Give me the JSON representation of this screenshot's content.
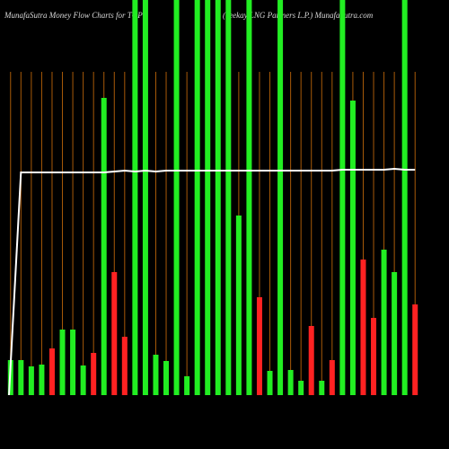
{
  "chart_data": {
    "type": "bar",
    "title": "MunafaSutra  Money Flow  Charts for TGP",
    "subtitle": "(Teekay LNG Partners L.P.) MunafaSutra.com",
    "categories": [
      null,
      null,
      null,
      null,
      null,
      null,
      null,
      null,
      null,
      null,
      null,
      null,
      null,
      null,
      null,
      null,
      null,
      null,
      null,
      null,
      null,
      null,
      null,
      null,
      null,
      null,
      null,
      null,
      null,
      null,
      null,
      null,
      null,
      null,
      null,
      null,
      null,
      null,
      null,
      null
    ],
    "values": [
      39,
      39,
      32,
      34,
      52,
      73,
      73,
      33,
      47,
      331,
      137,
      65,
      440,
      440,
      45,
      38,
      440,
      21,
      440,
      440,
      440,
      440,
      200,
      440,
      109,
      27,
      440,
      28,
      16,
      77,
      16,
      39,
      440,
      328,
      151,
      86,
      162,
      137,
      440,
      101
    ],
    "colors": [
      "#22ee22",
      "#22ee22",
      "#22ee22",
      "#22ee22",
      "#ff2222",
      "#22ee22",
      "#22ee22",
      "#22ee22",
      "#ff2222",
      "#22ee22",
      "#ff2222",
      "#ff2222",
      "#22ee22",
      "#22ee22",
      "#22ee22",
      "#22ee22",
      "#22ee22",
      "#22ee22",
      "#22ee22",
      "#22ee22",
      "#22ee22",
      "#22ee22",
      "#22ee22",
      "#22ee22",
      "#ff2222",
      "#22ee22",
      "#22ee22",
      "#22ee22",
      "#22ee22",
      "#ff2222",
      "#22ee22",
      "#ff2222",
      "#22ee22",
      "#22ee22",
      "#ff2222",
      "#ff2222",
      "#22ee22",
      "#22ee22",
      "#22ee22",
      "#ff2222"
    ],
    "line_values": [
      0,
      248,
      248,
      248,
      248,
      248,
      248,
      248,
      248,
      248,
      249,
      250,
      249,
      250,
      249,
      250,
      250,
      250,
      250,
      250,
      250,
      250,
      250,
      250,
      250,
      250,
      250,
      250,
      250,
      250,
      250,
      250,
      251,
      251,
      251,
      251,
      251,
      252,
      251,
      251
    ],
    "line_color": "#ffffff",
    "ylim": [
      0,
      440
    ]
  }
}
